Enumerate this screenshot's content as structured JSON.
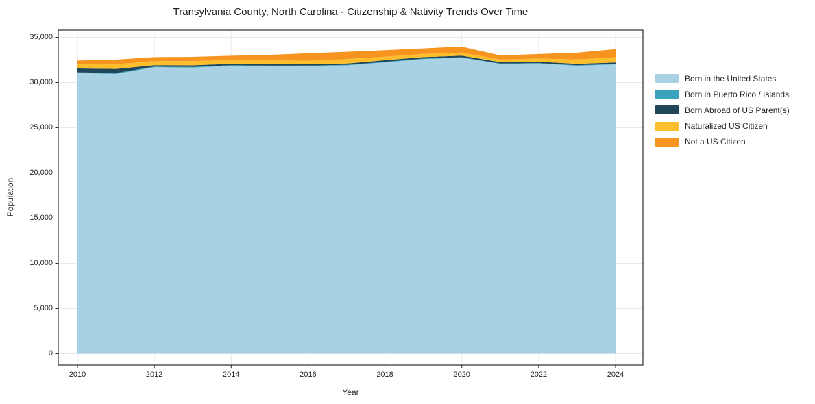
{
  "chart_data": {
    "type": "area",
    "stacked": true,
    "title": "Transylvania County, North Carolina - Citizenship & Nativity Trends Over Time",
    "xlabel": "Year",
    "ylabel": "Population",
    "grid": true,
    "legend_position": "right of plot, vertical",
    "xlim": [
      2009.5,
      2024.72
    ],
    "ylim": [
      0,
      35790
    ],
    "x": [
      2010,
      2011,
      2012,
      2013,
      2014,
      2015,
      2016,
      2017,
      2018,
      2019,
      2020,
      2021,
      2022,
      2023,
      2024
    ],
    "x_tick_values": [
      2010,
      2012,
      2014,
      2016,
      2018,
      2020,
      2022,
      2024
    ],
    "x_tick_labels": [
      "2010",
      "2012",
      "2014",
      "2016",
      "2018",
      "2020",
      "2022",
      "2024"
    ],
    "y_tick_values": [
      0,
      5000,
      10000,
      15000,
      20000,
      25000,
      30000,
      35000
    ],
    "y_tick_labels": [
      "0",
      "5,000",
      "10,000",
      "15,000",
      "20,000",
      "25,000",
      "30,000",
      "35,000"
    ],
    "series": [
      {
        "name": "Born in the United States",
        "color": "#a8d2e4",
        "values": [
          31050,
          30950,
          31700,
          31650,
          31850,
          31800,
          31830,
          31890,
          32230,
          32590,
          32740,
          32050,
          32100,
          31850,
          32000
        ]
      },
      {
        "name": "Born in Puerto Rico / Islands",
        "color": "#3aa3bd",
        "values": [
          80,
          90,
          60,
          70,
          60,
          60,
          50,
          60,
          60,
          60,
          60,
          50,
          50,
          60,
          60
        ]
      },
      {
        "name": "Born Abroad of US Parent(s)",
        "color": "#20465a",
        "values": [
          420,
          470,
          160,
          180,
          150,
          160,
          130,
          150,
          180,
          160,
          170,
          150,
          150,
          160,
          160
        ]
      },
      {
        "name": "Naturalized US Citizen",
        "color": "#fcbf2b",
        "values": [
          450,
          520,
          450,
          470,
          440,
          450,
          390,
          500,
          390,
          360,
          350,
          300,
          350,
          480,
          580
        ]
      },
      {
        "name": "Not a US Citizen",
        "color": "#f7941f",
        "values": [
          430,
          510,
          440,
          470,
          460,
          590,
          840,
          800,
          720,
          610,
          660,
          450,
          500,
          750,
          900
        ]
      }
    ],
    "totals": [
      32430,
      32540,
      32810,
      32840,
      32960,
      33060,
      33240,
      33400,
      33580,
      33780,
      33980,
      33000,
      33150,
      33300,
      33700
    ]
  },
  "style": {
    "frame_color": "#2b2b2b",
    "grid_color": "#e9e9e9",
    "tick_color": "#262626",
    "background": "#ffffff"
  }
}
